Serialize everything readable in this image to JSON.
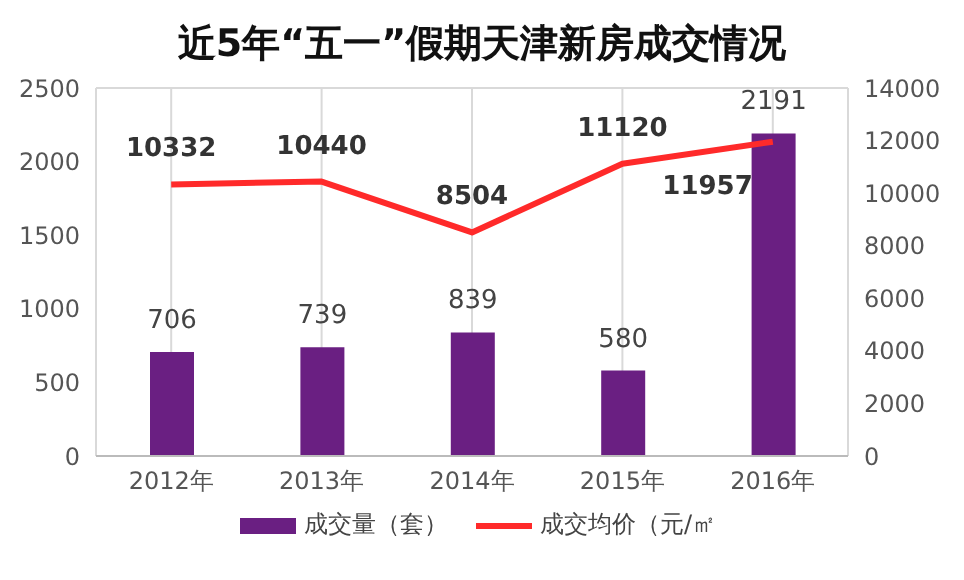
{
  "chart_data": {
    "type": "bar",
    "title": "近5年“五一”假期天津新房成交情况",
    "categories": [
      "2012年",
      "2013年",
      "2014年",
      "2015年",
      "2016年"
    ],
    "series": [
      {
        "name": "成交量（套）",
        "color": "#6a1f82",
        "values": [
          706,
          739,
          839,
          580,
          2191
        ]
      },
      {
        "name": "成交均价（元/㎡",
        "type": "line",
        "axis": "y2",
        "color": "#ff2a2a",
        "values": [
          10332,
          10440,
          8504,
          11120,
          11957
        ]
      }
    ],
    "ylim": [
      0,
      2500
    ],
    "yticks": [
      0,
      500,
      1000,
      1500,
      2000,
      2500
    ],
    "y2lim": [
      0,
      14000
    ],
    "y2ticks": [
      0,
      2000,
      4000,
      6000,
      8000,
      10000,
      12000,
      14000
    ],
    "grid": true,
    "legend": "bottom",
    "data_labels": true,
    "marker": "none",
    "line_style": "solid"
  }
}
